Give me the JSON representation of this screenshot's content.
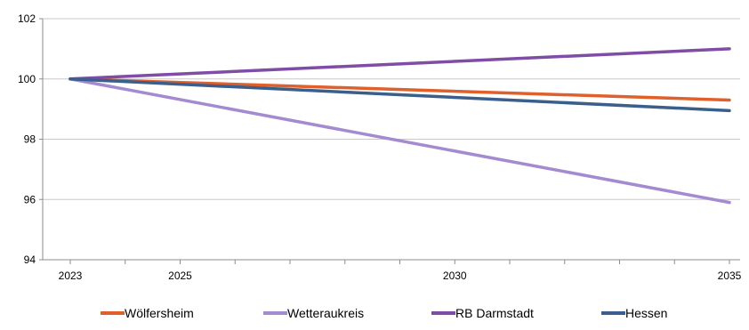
{
  "chart_data": {
    "type": "line",
    "title": "",
    "xlabel": "",
    "ylabel": "",
    "x": [
      2023,
      2035
    ],
    "xlim": [
      2023,
      2035
    ],
    "ylim": [
      94,
      102
    ],
    "y_ticks": [
      94,
      96,
      98,
      100,
      102
    ],
    "y_tick_labels": [
      "94",
      "96",
      "98",
      "100",
      "102"
    ],
    "x_tick_labels": [
      {
        "value": 2023,
        "label": "2023"
      },
      {
        "value": 2025,
        "label": "2025"
      },
      {
        "value": 2030,
        "label": "2030"
      },
      {
        "value": 2035,
        "label": "2035"
      }
    ],
    "grid": "horizontal",
    "legend_position": "bottom",
    "series": [
      {
        "name": "Wölfersheim",
        "color": "#e0602b",
        "values": [
          100,
          99.3
        ]
      },
      {
        "name": "Wetteraukreis",
        "color": "#a48ad0",
        "values": [
          100,
          95.9
        ]
      },
      {
        "name": "RB Darmstadt",
        "color": "#7f4ca6",
        "values": [
          100,
          101.0
        ]
      },
      {
        "name": "Hessen",
        "color": "#3b5f8c",
        "values": [
          100,
          98.95
        ]
      }
    ]
  }
}
